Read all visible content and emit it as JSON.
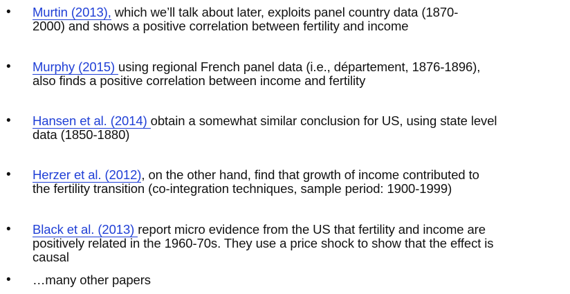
{
  "bullets": [
    {
      "link": "Murtin (2013),",
      "line1": " which we’ll talk about later, exploits panel country data (1870-",
      "line2": "2000) and shows a positive correlation between fertility and income"
    },
    {
      "link": "Murphy (2015) ",
      "line1": "using regional French panel data (i.e., département, 1876-1896),",
      "line2": "also finds a positive correlation between income and fertility"
    },
    {
      "link": "Hansen et al. (2014) ",
      "line1": "obtain a somewhat similar conclusion for US, using state level",
      "line2": "data (1850-1880)"
    },
    {
      "link": "Herzer et al. (2012)",
      "line1": ", on the other hand, find that  growth of income contributed to",
      "line2": "the fertility transition (co-integration techniques, sample period: 1900-1999)"
    },
    {
      "link": "Black et al. (2013) ",
      "line1": "report micro evidence from the US that fertility and income are",
      "line2": "positively related in the 1960-70s. They use a price shock to show that the effect is",
      "line3": "causal"
    },
    {
      "text": "…many other papers"
    }
  ],
  "bullet_symbol": "•"
}
